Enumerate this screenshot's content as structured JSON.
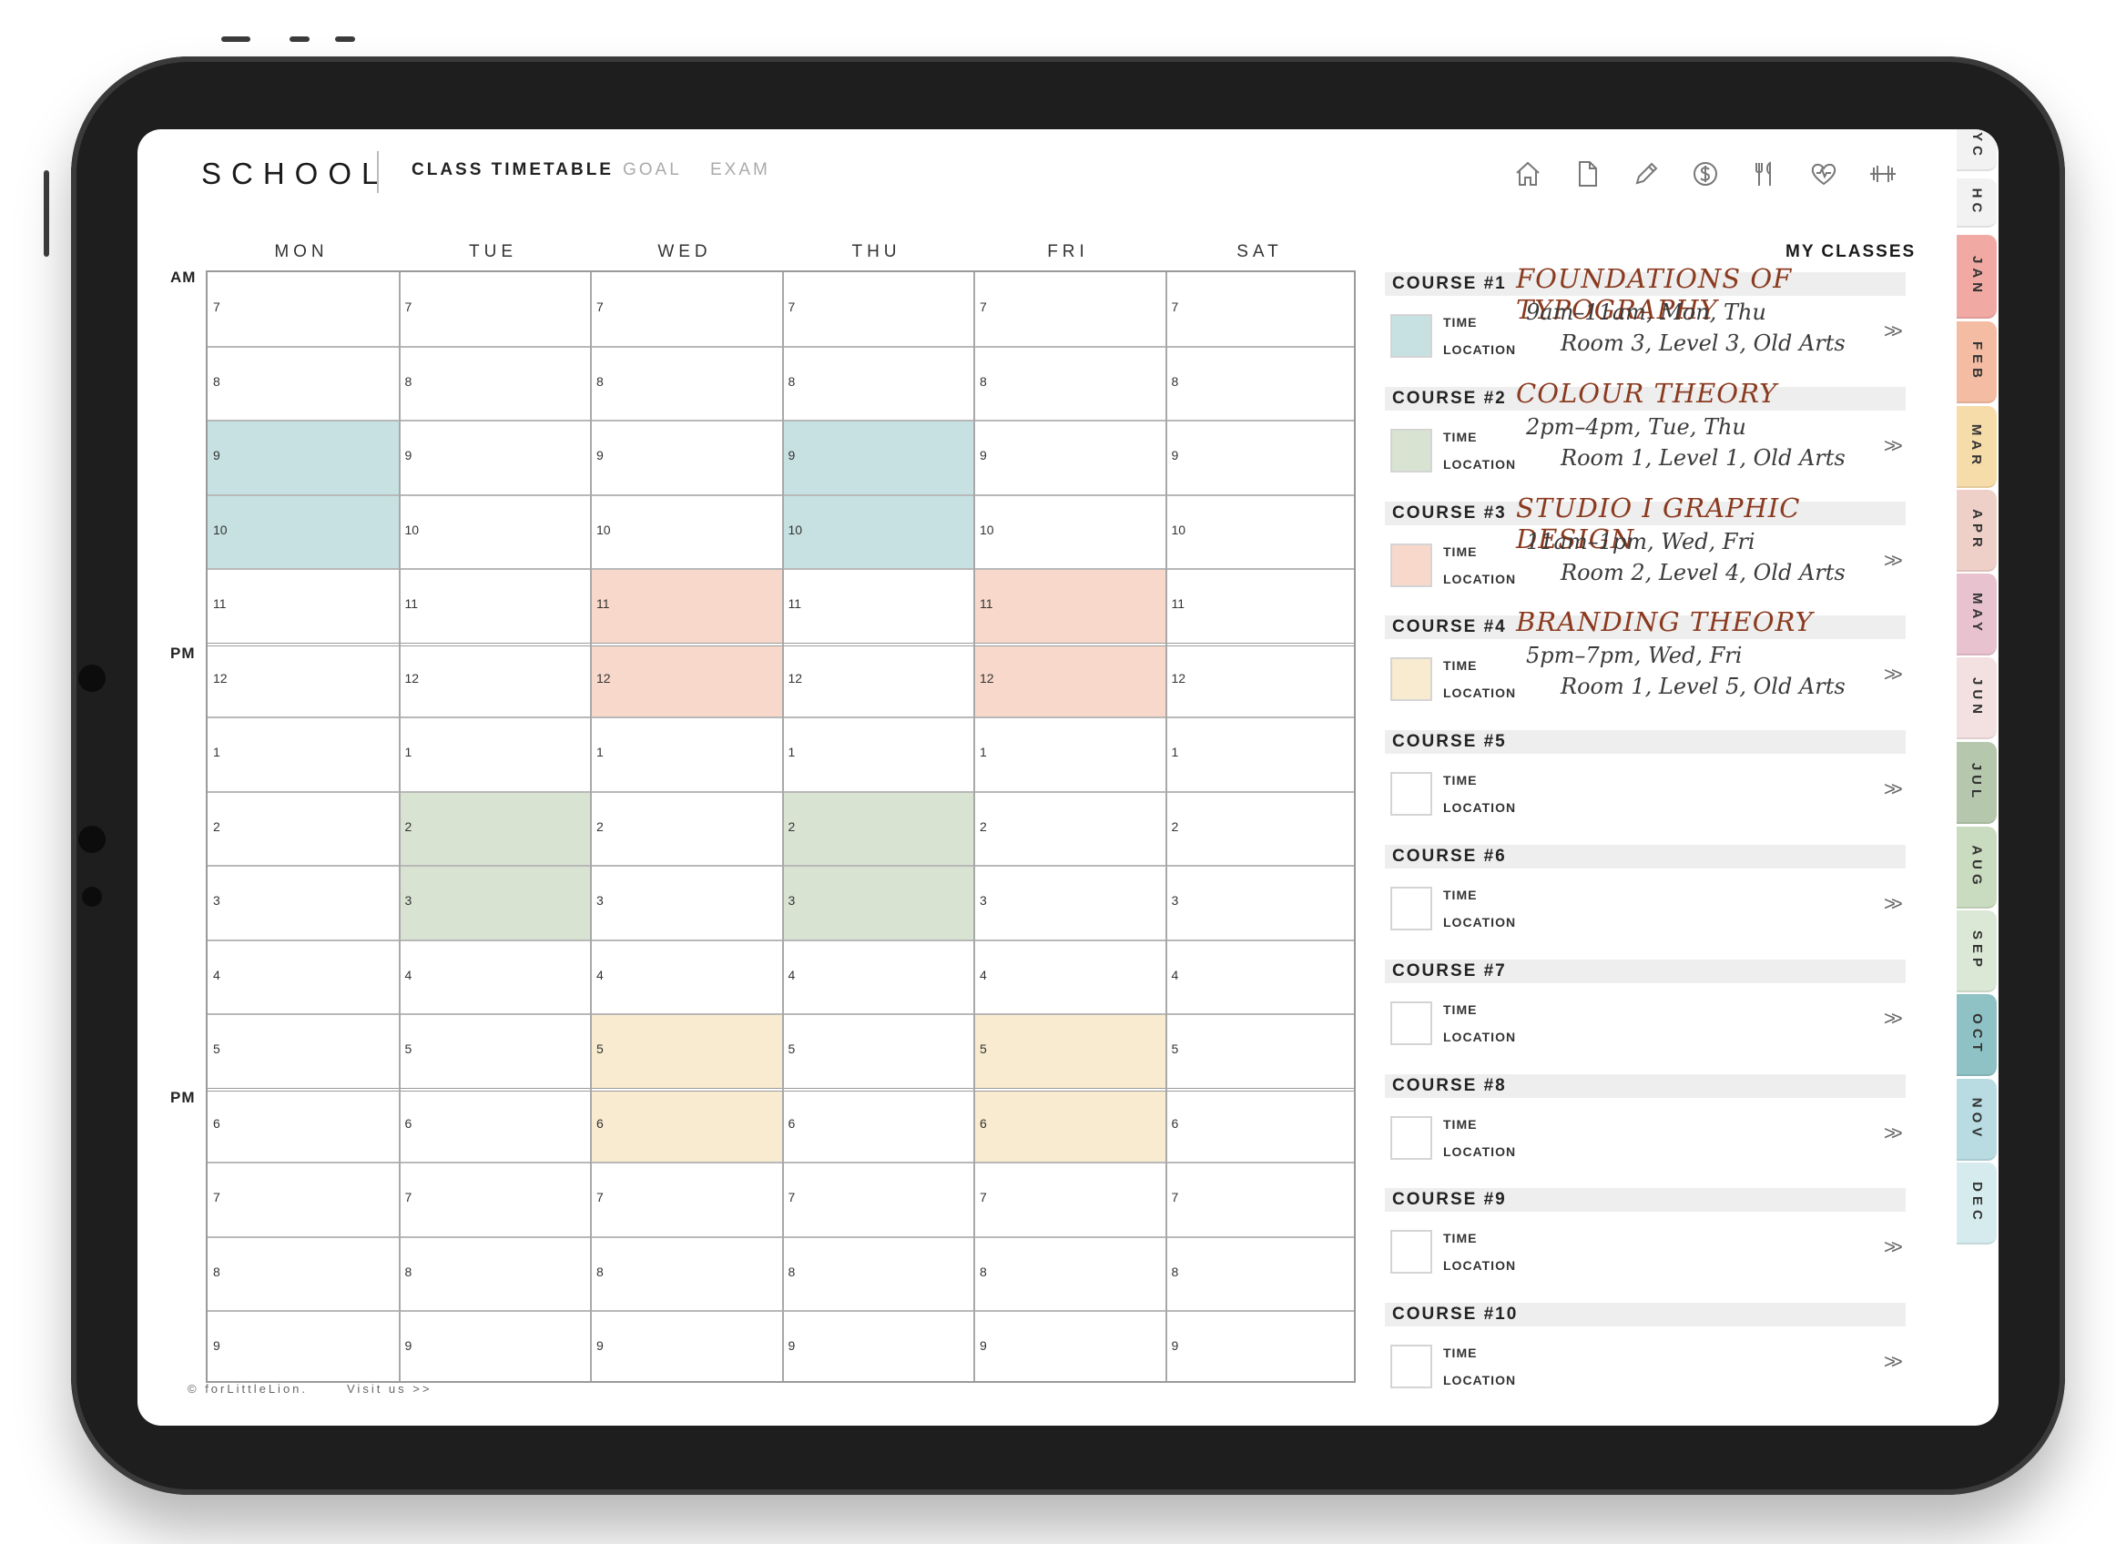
{
  "header": {
    "brand": "SCHOOL",
    "tabs": [
      {
        "label": "CLASS TIMETABLE",
        "active": true
      },
      {
        "label": "GOAL",
        "active": false
      },
      {
        "label": "EXAM",
        "active": false
      }
    ],
    "icons": [
      "home-icon",
      "document-icon",
      "pencil-icon",
      "dollar-icon",
      "utensils-icon",
      "heart-icon",
      "dumbbell-icon"
    ]
  },
  "timetable": {
    "days": [
      "MON",
      "TUE",
      "WED",
      "THU",
      "FRI",
      "SAT"
    ],
    "hours": [
      "7",
      "8",
      "9",
      "10",
      "11",
      "12",
      "1",
      "2",
      "3",
      "4",
      "5",
      "6",
      "7",
      "8",
      "9"
    ],
    "period_labels": [
      "AM",
      "PM",
      "PM"
    ],
    "blocks": [
      {
        "day": 0,
        "start": 2,
        "span": 2,
        "color": "#c7e0e1"
      },
      {
        "day": 3,
        "start": 2,
        "span": 2,
        "color": "#c7e0e1"
      },
      {
        "day": 2,
        "start": 4,
        "span": 2,
        "color": "#f7d8cb"
      },
      {
        "day": 4,
        "start": 4,
        "span": 2,
        "color": "#f7d8cb"
      },
      {
        "day": 1,
        "start": 7,
        "span": 2,
        "color": "#d8e3d2"
      },
      {
        "day": 3,
        "start": 7,
        "span": 2,
        "color": "#d8e3d2"
      },
      {
        "day": 2,
        "start": 10,
        "span": 2,
        "color": "#f8ebcf"
      },
      {
        "day": 4,
        "start": 10,
        "span": 2,
        "color": "#f8ebcf"
      }
    ]
  },
  "my_classes": {
    "title": "MY CLASSES",
    "time_label": "TIME",
    "location_label": "LOCATION",
    "arrow": ">>",
    "courses": [
      {
        "label": "COURSE #1",
        "name": "FOUNDATIONS OF TYPOGRAPHY",
        "time": "9am–11am, Mon, Thu",
        "location": "Room 3, Level 3,  Old Arts",
        "color": "#c7e0e1"
      },
      {
        "label": "COURSE #2",
        "name": "COLOUR THEORY",
        "time": "2pm–4pm, Tue, Thu",
        "location": "Room 1, Level 1,  Old Arts",
        "color": "#d8e3d2"
      },
      {
        "label": "COURSE #3",
        "name": "STUDIO I GRAPHIC DESIGN",
        "time": "11am–1pm, Wed, Fri",
        "location": "Room 2, Level 4,  Old Arts",
        "color": "#f7d8cb"
      },
      {
        "label": "COURSE #4",
        "name": "BRANDING THEORY",
        "time": "5pm–7pm, Wed, Fri",
        "location": "Room 1, Level 5,  Old Arts",
        "color": "#f8ebcf"
      },
      {
        "label": "COURSE #5",
        "name": "",
        "time": "",
        "location": "",
        "color": "#ffffff"
      },
      {
        "label": "COURSE #6",
        "name": "",
        "time": "",
        "location": "",
        "color": "#ffffff"
      },
      {
        "label": "COURSE #7",
        "name": "",
        "time": "",
        "location": "",
        "color": "#ffffff"
      },
      {
        "label": "COURSE #8",
        "name": "",
        "time": "",
        "location": "",
        "color": "#ffffff"
      },
      {
        "label": "COURSE #9",
        "name": "",
        "time": "",
        "location": "",
        "color": "#ffffff"
      },
      {
        "label": "COURSE #10",
        "name": "",
        "time": "",
        "location": "",
        "color": "#ffffff"
      }
    ]
  },
  "side_tabs": [
    {
      "label": "YC",
      "color": "#f2f2f2"
    },
    {
      "label": "HC",
      "color": "#f2f2f2"
    },
    {
      "label": "JAN",
      "color": "#f1a9a4"
    },
    {
      "label": "FEB",
      "color": "#f4bca2"
    },
    {
      "label": "MAR",
      "color": "#f6dca9"
    },
    {
      "label": "APR",
      "color": "#efd0c9"
    },
    {
      "label": "MAY",
      "color": "#e8c2cf"
    },
    {
      "label": "JUN",
      "color": "#f3e1e1"
    },
    {
      "label": "JUL",
      "color": "#b5c7ad"
    },
    {
      "label": "AUG",
      "color": "#cadcc0"
    },
    {
      "label": "SEP",
      "color": "#dbe8d6"
    },
    {
      "label": "OCT",
      "color": "#8fc2c5"
    },
    {
      "label": "NOV",
      "color": "#b8dce2"
    },
    {
      "label": "DEC",
      "color": "#d6ebee"
    }
  ],
  "footer": {
    "copyright": "© forLittleLion.",
    "visit": "Visit us >>"
  }
}
